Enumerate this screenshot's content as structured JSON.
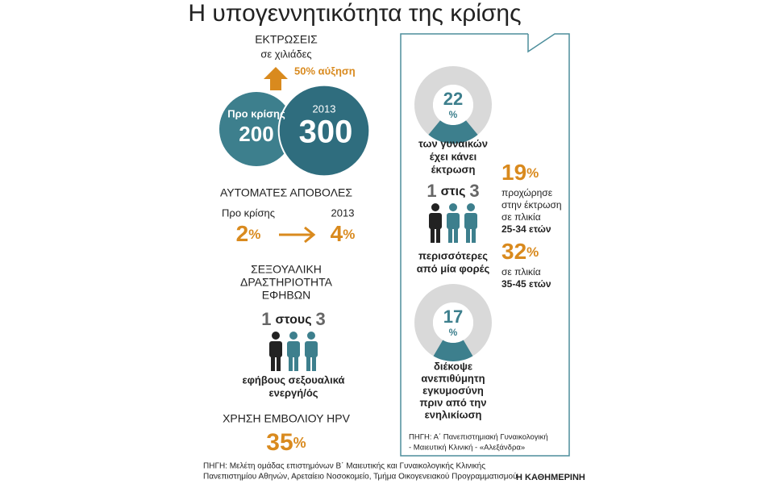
{
  "title": "Η υπογεννητικότητα της κρίσης",
  "abortions": {
    "heading": "ΕΚΤΡΩΣΕΙΣ",
    "subheading": "σε χιλιάδες",
    "increase": "50% αύξηση",
    "before": {
      "label": "Προ κρίσης",
      "value": 200
    },
    "after": {
      "label": "2013",
      "value": 300
    }
  },
  "miscarriages": {
    "heading": "ΑΥΤΟΜΑΤΕΣ ΑΠΟΒΟΛΕΣ",
    "before": {
      "label": "Προ κρίσης",
      "value": 2
    },
    "after": {
      "label": "2013",
      "value": 4
    },
    "unit": "%"
  },
  "teen_activity": {
    "heading": [
      "ΣΕΞΟΥΑΛΙΚΗ",
      "ΔΡΑΣΤΗΡΙΟΤΗΤΑ",
      "ΕΦΗΒΩΝ"
    ],
    "ratio": {
      "numerator": 1,
      "word": "στους",
      "denominator": 3
    },
    "caption": [
      "εφήβους σεξουαλικά",
      "ενεργή/ός"
    ]
  },
  "hpv": {
    "heading": "ΧΡΗΣΗ ΕΜΒΟΛΙΟΥ HPV",
    "value": 35,
    "unit": "%"
  },
  "source": [
    "ΠΗΓΗ: Μελέτη ομάδας επιστημόνων Β΄ Μαιευτικής και Γυναικολογικής Κλινικής",
    "Πανεπιστημίου Αθηνών,  Αρεταίειο Νοσοκομείο, Τμήμα Οικογενειακού Προγραμματισμού"
  ],
  "brand": "Η ΚΑΘΗΜΕΡΙΝΗ",
  "panel": {
    "abortion_share": {
      "value": 22,
      "unit": "%",
      "caption": [
        "των γυναικών",
        "έχει κάνει",
        "έκτρωση"
      ]
    },
    "repeat": {
      "numerator": 1,
      "word": "στις",
      "denominator": 3,
      "caption": [
        "περισσότερες",
        "από μία φορές"
      ]
    },
    "age_25_34": {
      "value": 19,
      "unit": "%",
      "caption": [
        "προχώρησε",
        "στην έκτρωση",
        "σε πλικία",
        "25-34 ετών"
      ]
    },
    "age_35_45": {
      "value": 32,
      "unit": "%",
      "caption": [
        "σε πλικία",
        "35-45 ετών"
      ]
    },
    "interrupted": {
      "value": 17,
      "unit": "%",
      "caption": [
        "διέκοψε",
        "ανεπιθύμητη",
        "εγκυμοσύνη",
        "πριν από την",
        "ενηλικίωση"
      ]
    },
    "source": [
      "ΠΗΓΗ: Α΄ Πανεπιστημιακή Γυναικολογική",
      "- Μαιευτική Κλινική - «Αλεξάνδρα»"
    ]
  }
}
